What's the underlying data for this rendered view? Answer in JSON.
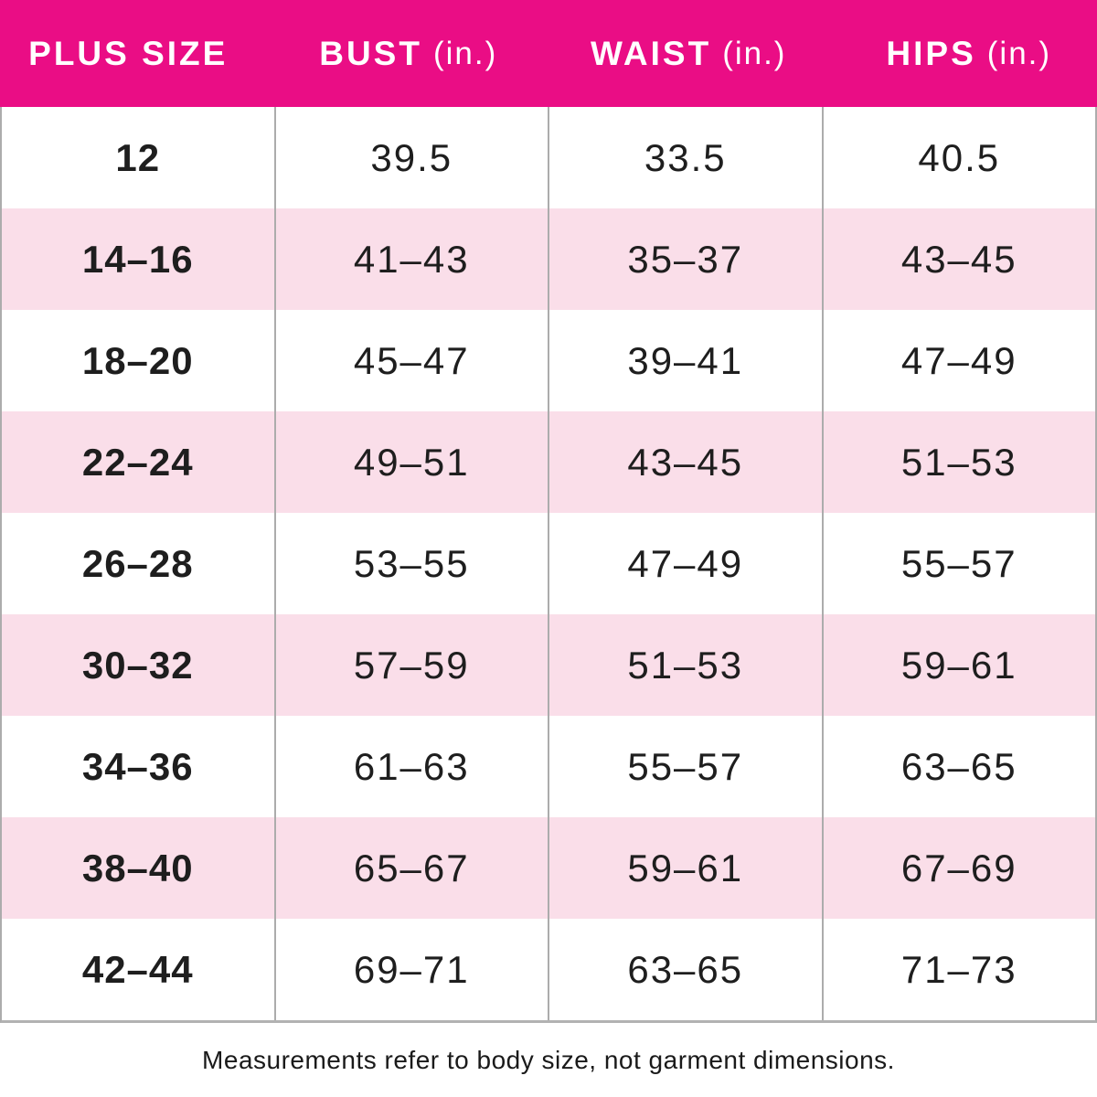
{
  "header": {
    "columns": [
      {
        "label": "PLUS SIZE",
        "unit": ""
      },
      {
        "label": "BUST",
        "unit": "(in.)"
      },
      {
        "label": "WAIST",
        "unit": "(in.)"
      },
      {
        "label": "HIPS",
        "unit": "(in.)"
      }
    ]
  },
  "chart_data": {
    "type": "table",
    "columns": [
      "PLUS SIZE",
      "BUST (in.)",
      "WAIST (in.)",
      "HIPS (in.)"
    ],
    "rows": [
      [
        "12",
        "39.5",
        "33.5",
        "40.5"
      ],
      [
        "14–16",
        "41–43",
        "35–37",
        "43–45"
      ],
      [
        "18–20",
        "45–47",
        "39–41",
        "47–49"
      ],
      [
        "22–24",
        "49–51",
        "43–45",
        "51–53"
      ],
      [
        "26–28",
        "53–55",
        "47–49",
        "55–57"
      ],
      [
        "30–32",
        "57–59",
        "51–53",
        "59–61"
      ],
      [
        "34–36",
        "61–63",
        "55–57",
        "63–65"
      ],
      [
        "38–40",
        "65–67",
        "59–61",
        "67–69"
      ],
      [
        "42–44",
        "69–71",
        "63–65",
        "71–73"
      ]
    ],
    "units": "inches",
    "layout": {
      "striped_rows": true,
      "stripe_pattern": "alternating starting white"
    }
  },
  "footer": {
    "note": "Measurements refer to body size, not garment dimensions."
  },
  "colors": {
    "header_bg": "#EA0D85",
    "header_text": "#FFFFFF",
    "row_bg": "#FFFFFF",
    "row_stripe_bg": "#FADEE9",
    "grid_border": "#ACACAC",
    "body_text": "#1E1E1E"
  }
}
